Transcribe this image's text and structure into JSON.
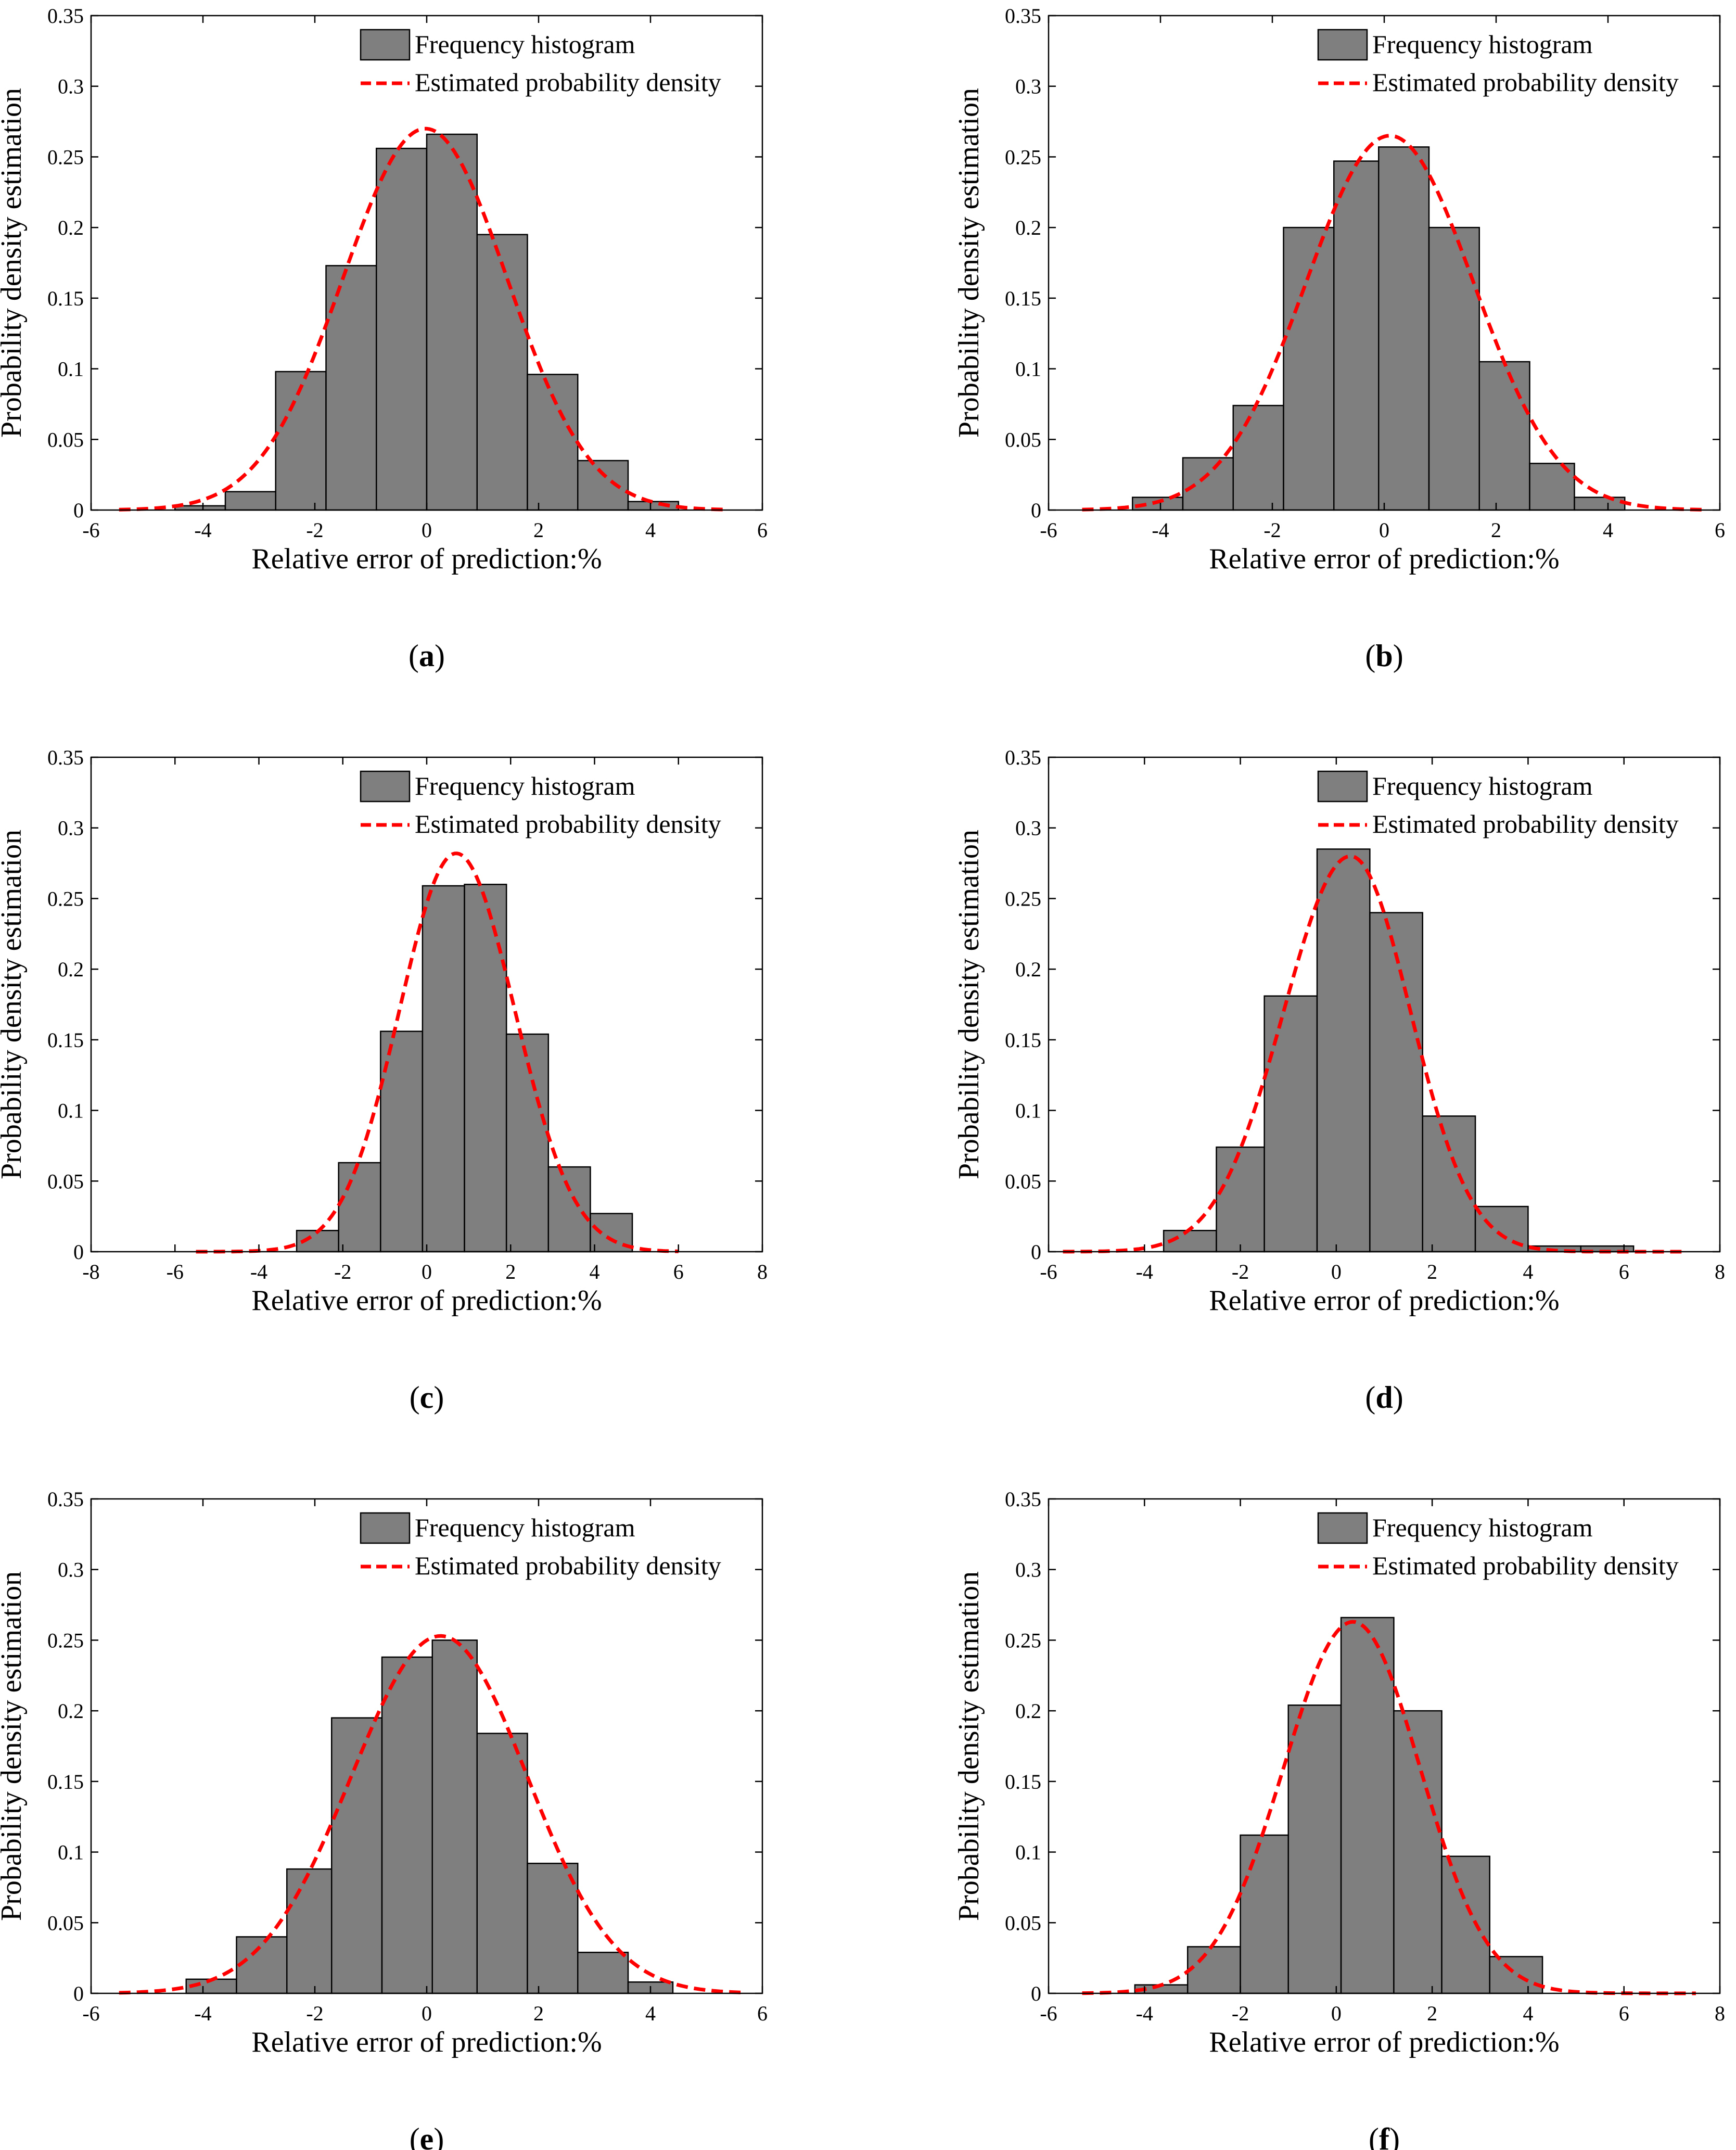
{
  "figure": {
    "panel_count": 6
  },
  "colors": {
    "bar_fill": "#7f7f7f",
    "bar_stroke": "#000000",
    "curve": "#ff0000",
    "axis": "#000000"
  },
  "chart_data": [
    {
      "type": "bar",
      "subtype": "histogram_with_density",
      "caption": "a",
      "xlabel": "Relative error of prediction:%",
      "ylabel": "Probability density estimation",
      "xlim": [
        -6,
        6
      ],
      "ylim": [
        0,
        0.35
      ],
      "xticks": [
        "-6",
        "-4",
        "-2",
        "0",
        "2",
        "4",
        "6"
      ],
      "yticks": [
        "0",
        "0.05",
        "0.1",
        "0.15",
        "0.2",
        "0.25",
        "0.3",
        "0.35"
      ],
      "legend": {
        "histogram_label": "Frequency histogram",
        "density_label": "Estimated probability density",
        "position": "top-right"
      },
      "grid": false,
      "bin_edges": [
        -4.5,
        -3.6,
        -2.7,
        -1.8,
        -0.9,
        0.0,
        0.9,
        1.8,
        2.7,
        3.6,
        4.5
      ],
      "bin_values": [
        0.003,
        0.013,
        0.098,
        0.173,
        0.256,
        0.266,
        0.195,
        0.096,
        0.035,
        0.006
      ],
      "density": {
        "mu": -0.02,
        "sigma_left": 1.48,
        "sigma_right": 1.46,
        "peak": 0.27,
        "x_range": [
          -5.5,
          5.4
        ]
      }
    },
    {
      "type": "bar",
      "subtype": "histogram_with_density",
      "caption": "b",
      "xlabel": "Relative error of prediction:%",
      "ylabel": "Probability density estimation",
      "xlim": [
        -6,
        6
      ],
      "ylim": [
        0,
        0.35
      ],
      "xticks": [
        "-6",
        "-4",
        "-2",
        "0",
        "2",
        "4",
        "6"
      ],
      "yticks": [
        "0",
        "0.05",
        "0.1",
        "0.15",
        "0.2",
        "0.25",
        "0.3",
        "0.35"
      ],
      "legend": {
        "histogram_label": "Frequency histogram",
        "density_label": "Estimated probability density",
        "position": "top-right"
      },
      "grid": false,
      "bin_edges": [
        -4.5,
        -3.6,
        -2.7,
        -1.8,
        -0.9,
        -0.1,
        0.8,
        1.7,
        2.6,
        3.4,
        4.3
      ],
      "bin_values": [
        0.009,
        0.037,
        0.074,
        0.2,
        0.247,
        0.257,
        0.2,
        0.105,
        0.033,
        0.009
      ],
      "density": {
        "mu": 0.1,
        "sigma_left": 1.5,
        "sigma_right": 1.5,
        "peak": 0.265,
        "x_range": [
          -5.4,
          5.7
        ]
      }
    },
    {
      "type": "bar",
      "subtype": "histogram_with_density",
      "caption": "c",
      "xlabel": "Relative error of prediction:%",
      "ylabel": "Probability density estimation",
      "xlim": [
        -8,
        8
      ],
      "ylim": [
        0,
        0.35
      ],
      "xticks": [
        "-8",
        "-6",
        "-4",
        "-2",
        "0",
        "2",
        "4",
        "6",
        "8"
      ],
      "yticks": [
        "0",
        "0.05",
        "0.1",
        "0.15",
        "0.2",
        "0.25",
        "0.3",
        "0.35"
      ],
      "legend": {
        "histogram_label": "Frequency histogram",
        "density_label": "Estimated probability density",
        "position": "top-right"
      },
      "grid": false,
      "bin_edges": [
        -3.1,
        -2.1,
        -1.1,
        -0.1,
        0.9,
        1.9,
        2.9,
        3.9,
        4.9
      ],
      "bin_values": [
        0.015,
        0.063,
        0.156,
        0.259,
        0.26,
        0.154,
        0.06,
        0.027
      ],
      "density": {
        "mu": 0.7,
        "sigma_left": 1.35,
        "sigma_right": 1.4,
        "peak": 0.282,
        "x_range": [
          -5.5,
          6.0
        ]
      }
    },
    {
      "type": "bar",
      "subtype": "histogram_with_density",
      "caption": "d",
      "xlabel": "Relative error of prediction:%",
      "ylabel": "Probability density estimation",
      "xlim": [
        -6,
        8
      ],
      "ylim": [
        0,
        0.35
      ],
      "xticks": [
        "-6",
        "-4",
        "-2",
        "0",
        "2",
        "4",
        "6",
        "8"
      ],
      "yticks": [
        "0",
        "0.05",
        "0.1",
        "0.15",
        "0.2",
        "0.25",
        "0.3",
        "0.35"
      ],
      "legend": {
        "histogram_label": "Frequency histogram",
        "density_label": "Estimated probability density",
        "position": "top-right"
      },
      "grid": false,
      "bin_edges": [
        -3.6,
        -2.5,
        -1.5,
        -0.4,
        0.7,
        1.8,
        2.9,
        4.0,
        5.1,
        6.2
      ],
      "bin_values": [
        0.015,
        0.074,
        0.181,
        0.285,
        0.24,
        0.096,
        0.032,
        0.004,
        0.004
      ],
      "density": {
        "mu": 0.3,
        "sigma_left": 1.4,
        "sigma_right": 1.25,
        "peak": 0.28,
        "x_range": [
          -5.7,
          7.2
        ]
      }
    },
    {
      "type": "bar",
      "subtype": "histogram_with_density",
      "caption": "e",
      "xlabel": "Relative error of prediction:%",
      "ylabel": "Probability density estimation",
      "xlim": [
        -6,
        6
      ],
      "ylim": [
        0,
        0.35
      ],
      "xticks": [
        "-6",
        "-4",
        "-2",
        "0",
        "2",
        "4",
        "6"
      ],
      "yticks": [
        "0",
        "0.05",
        "0.1",
        "0.15",
        "0.2",
        "0.25",
        "0.3",
        "0.35"
      ],
      "legend": {
        "histogram_label": "Frequency histogram",
        "density_label": "Estimated probability density",
        "position": "top-right"
      },
      "grid": false,
      "bin_edges": [
        -4.3,
        -3.4,
        -2.5,
        -1.7,
        -0.8,
        0.1,
        0.9,
        1.8,
        2.7,
        3.6,
        4.4
      ],
      "bin_values": [
        0.01,
        0.04,
        0.088,
        0.195,
        0.238,
        0.25,
        0.184,
        0.092,
        0.029,
        0.008
      ],
      "density": {
        "mu": 0.25,
        "sigma_left": 1.6,
        "sigma_right": 1.55,
        "peak": 0.253,
        "x_range": [
          -5.5,
          5.7
        ]
      }
    },
    {
      "type": "bar",
      "subtype": "histogram_with_density",
      "caption": "f",
      "xlabel": "Relative error of prediction:%",
      "ylabel": "Probability density estimation",
      "xlim": [
        -6,
        8
      ],
      "ylim": [
        0,
        0.35
      ],
      "xticks": [
        "-6",
        "-4",
        "-2",
        "0",
        "2",
        "4",
        "6",
        "8"
      ],
      "yticks": [
        "0",
        "0.05",
        "0.1",
        "0.15",
        "0.2",
        "0.25",
        "0.3",
        "0.35"
      ],
      "legend": {
        "histogram_label": "Frequency histogram",
        "density_label": "Estimated probability density",
        "position": "top-right"
      },
      "grid": false,
      "bin_edges": [
        -4.2,
        -3.1,
        -2.0,
        -1.0,
        0.1,
        1.2,
        2.2,
        3.2,
        4.3
      ],
      "bin_values": [
        0.006,
        0.033,
        0.112,
        0.204,
        0.266,
        0.2,
        0.097,
        0.026
      ],
      "density": {
        "mu": 0.35,
        "sigma_left": 1.45,
        "sigma_right": 1.4,
        "peak": 0.263,
        "x_range": [
          -5.3,
          7.5
        ]
      }
    }
  ]
}
